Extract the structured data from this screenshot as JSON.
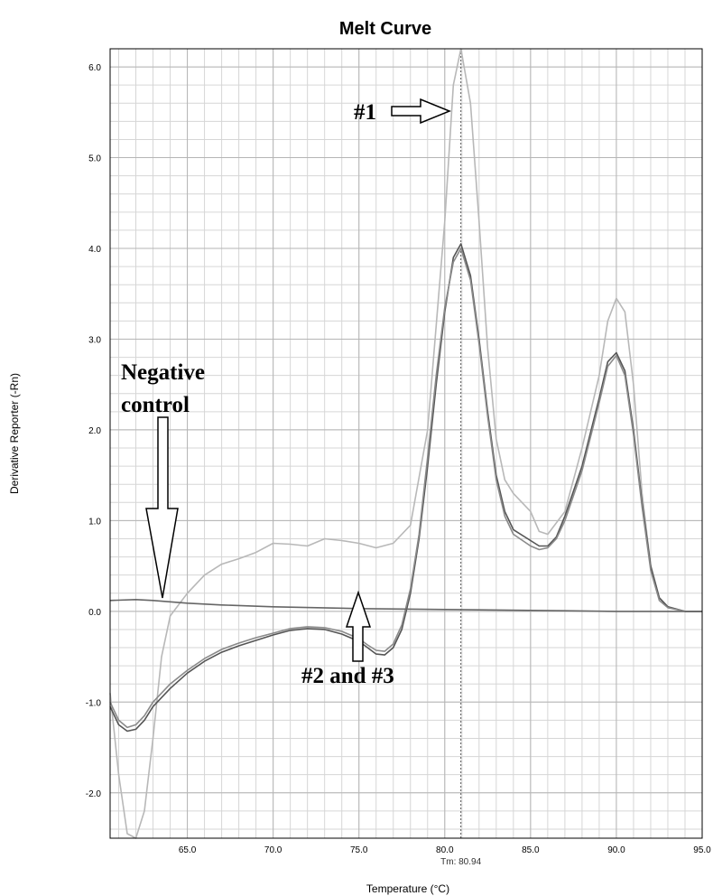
{
  "chart_data": {
    "type": "line",
    "title": "Melt Curve",
    "xlabel": "Temperature (°C)",
    "ylabel": "Derivative Reporter (-Rn)",
    "xlim": [
      60.5,
      95.0
    ],
    "ylim": [
      -2.5,
      6.2
    ],
    "x_ticks": [
      65.0,
      70.0,
      75.0,
      80.0,
      85.0,
      90.0,
      95.0
    ],
    "x_tick_labels": [
      "65.0",
      "70.0",
      "75.0",
      "80.0",
      "85.0",
      "90.0",
      "95.0"
    ],
    "y_ticks": [
      6.0,
      5.0,
      4.0,
      3.0,
      2.0,
      1.0,
      0.0,
      -1.0,
      -2.0
    ],
    "y_tick_labels": [
      "6.0",
      "5.0",
      "4.0",
      "3.0",
      "2.0",
      "1.0",
      "0.0",
      "-1.0",
      "-2.0"
    ],
    "grid": true,
    "tm_marker": {
      "x": 80.94,
      "label": "Tm: 80.94"
    },
    "series": [
      {
        "color": "#b8b8b8",
        "points": [
          [
            60.5,
            -0.9
          ],
          [
            61.0,
            -1.8
          ],
          [
            61.5,
            -2.45
          ],
          [
            62.0,
            -2.5
          ],
          [
            62.5,
            -2.2
          ],
          [
            63.0,
            -1.4
          ],
          [
            63.5,
            -0.5
          ],
          [
            64.0,
            -0.05
          ],
          [
            65.0,
            0.2
          ],
          [
            66.0,
            0.4
          ],
          [
            67.0,
            0.52
          ],
          [
            68.0,
            0.58
          ],
          [
            69.0,
            0.65
          ],
          [
            70.0,
            0.75
          ],
          [
            71.0,
            0.74
          ],
          [
            72.0,
            0.72
          ],
          [
            73.0,
            0.8
          ],
          [
            74.0,
            0.78
          ],
          [
            75.0,
            0.75
          ],
          [
            76.0,
            0.7
          ],
          [
            77.0,
            0.75
          ],
          [
            78.0,
            0.95
          ],
          [
            79.0,
            2.0
          ],
          [
            80.0,
            4.3
          ],
          [
            80.5,
            5.8
          ],
          [
            80.94,
            6.2
          ],
          [
            81.5,
            5.6
          ],
          [
            82.0,
            4.3
          ],
          [
            82.5,
            2.9
          ],
          [
            83.0,
            1.9
          ],
          [
            83.5,
            1.45
          ],
          [
            84.0,
            1.3
          ],
          [
            85.0,
            1.1
          ],
          [
            85.5,
            0.88
          ],
          [
            86.0,
            0.85
          ],
          [
            87.0,
            1.1
          ],
          [
            88.0,
            1.8
          ],
          [
            89.0,
            2.6
          ],
          [
            89.5,
            3.2
          ],
          [
            90.0,
            3.45
          ],
          [
            90.5,
            3.3
          ],
          [
            91.0,
            2.5
          ],
          [
            91.5,
            1.3
          ],
          [
            92.0,
            0.5
          ],
          [
            92.5,
            0.15
          ],
          [
            93.0,
            0.05
          ],
          [
            94.0,
            0.0
          ],
          [
            95.0,
            0.0
          ]
        ]
      },
      {
        "color": "#555555",
        "points": [
          [
            60.5,
            -1.05
          ],
          [
            61.0,
            -1.25
          ],
          [
            61.5,
            -1.32
          ],
          [
            62.0,
            -1.3
          ],
          [
            62.5,
            -1.2
          ],
          [
            63.0,
            -1.05
          ],
          [
            64.0,
            -0.85
          ],
          [
            65.0,
            -0.68
          ],
          [
            66.0,
            -0.55
          ],
          [
            67.0,
            -0.45
          ],
          [
            68.0,
            -0.38
          ],
          [
            69.0,
            -0.32
          ],
          [
            70.0,
            -0.26
          ],
          [
            71.0,
            -0.21
          ],
          [
            72.0,
            -0.19
          ],
          [
            73.0,
            -0.2
          ],
          [
            74.0,
            -0.25
          ],
          [
            75.0,
            -0.33
          ],
          [
            75.5,
            -0.4
          ],
          [
            76.0,
            -0.47
          ],
          [
            76.5,
            -0.48
          ],
          [
            77.0,
            -0.4
          ],
          [
            77.5,
            -0.2
          ],
          [
            78.0,
            0.2
          ],
          [
            78.5,
            0.8
          ],
          [
            79.0,
            1.6
          ],
          [
            79.5,
            2.5
          ],
          [
            80.0,
            3.3
          ],
          [
            80.5,
            3.9
          ],
          [
            80.94,
            4.05
          ],
          [
            81.5,
            3.7
          ],
          [
            82.0,
            3.0
          ],
          [
            82.5,
            2.2
          ],
          [
            83.0,
            1.5
          ],
          [
            83.5,
            1.1
          ],
          [
            84.0,
            0.9
          ],
          [
            85.0,
            0.78
          ],
          [
            85.5,
            0.72
          ],
          [
            86.0,
            0.72
          ],
          [
            86.5,
            0.82
          ],
          [
            87.0,
            1.05
          ],
          [
            88.0,
            1.6
          ],
          [
            89.0,
            2.35
          ],
          [
            89.5,
            2.75
          ],
          [
            90.0,
            2.85
          ],
          [
            90.5,
            2.65
          ],
          [
            91.0,
            2.0
          ],
          [
            91.5,
            1.2
          ],
          [
            92.0,
            0.5
          ],
          [
            92.5,
            0.15
          ],
          [
            93.0,
            0.05
          ],
          [
            94.0,
            0.0
          ],
          [
            95.0,
            0.0
          ]
        ]
      },
      {
        "color": "#8a8a8a",
        "points": [
          [
            60.5,
            -1.0
          ],
          [
            61.0,
            -1.2
          ],
          [
            61.5,
            -1.28
          ],
          [
            62.0,
            -1.25
          ],
          [
            62.5,
            -1.15
          ],
          [
            63.0,
            -1.0
          ],
          [
            64.0,
            -0.8
          ],
          [
            65.0,
            -0.65
          ],
          [
            66.0,
            -0.52
          ],
          [
            67.0,
            -0.42
          ],
          [
            68.0,
            -0.35
          ],
          [
            69.0,
            -0.29
          ],
          [
            70.0,
            -0.24
          ],
          [
            71.0,
            -0.19
          ],
          [
            72.0,
            -0.17
          ],
          [
            73.0,
            -0.18
          ],
          [
            74.0,
            -0.22
          ],
          [
            75.0,
            -0.3
          ],
          [
            75.5,
            -0.37
          ],
          [
            76.0,
            -0.43
          ],
          [
            76.5,
            -0.44
          ],
          [
            77.0,
            -0.36
          ],
          [
            77.5,
            -0.15
          ],
          [
            78.0,
            0.25
          ],
          [
            78.5,
            0.85
          ],
          [
            79.0,
            1.7
          ],
          [
            79.5,
            2.6
          ],
          [
            80.0,
            3.35
          ],
          [
            80.5,
            3.85
          ],
          [
            80.94,
            4.0
          ],
          [
            81.5,
            3.65
          ],
          [
            82.0,
            2.95
          ],
          [
            82.5,
            2.15
          ],
          [
            83.0,
            1.45
          ],
          [
            83.5,
            1.05
          ],
          [
            84.0,
            0.85
          ],
          [
            85.0,
            0.72
          ],
          [
            85.5,
            0.68
          ],
          [
            86.0,
            0.7
          ],
          [
            86.5,
            0.8
          ],
          [
            87.0,
            1.0
          ],
          [
            88.0,
            1.55
          ],
          [
            89.0,
            2.3
          ],
          [
            89.5,
            2.7
          ],
          [
            90.0,
            2.82
          ],
          [
            90.5,
            2.6
          ],
          [
            91.0,
            1.95
          ],
          [
            91.5,
            1.15
          ],
          [
            92.0,
            0.45
          ],
          [
            92.5,
            0.12
          ],
          [
            93.0,
            0.04
          ],
          [
            94.0,
            0.0
          ],
          [
            95.0,
            0.0
          ]
        ]
      },
      {
        "color": "#666666",
        "points": [
          [
            60.5,
            0.12
          ],
          [
            62.0,
            0.13
          ],
          [
            63.0,
            0.12
          ],
          [
            65.0,
            0.09
          ],
          [
            67.0,
            0.07
          ],
          [
            70.0,
            0.05
          ],
          [
            75.0,
            0.03
          ],
          [
            80.0,
            0.02
          ],
          [
            85.0,
            0.01
          ],
          [
            90.0,
            0.0
          ],
          [
            95.0,
            0.0
          ]
        ]
      }
    ],
    "annotations": [
      {
        "text": "#1"
      },
      {
        "text": "Negative"
      },
      {
        "text": "control"
      },
      {
        "text": "#2 and #3"
      }
    ]
  }
}
